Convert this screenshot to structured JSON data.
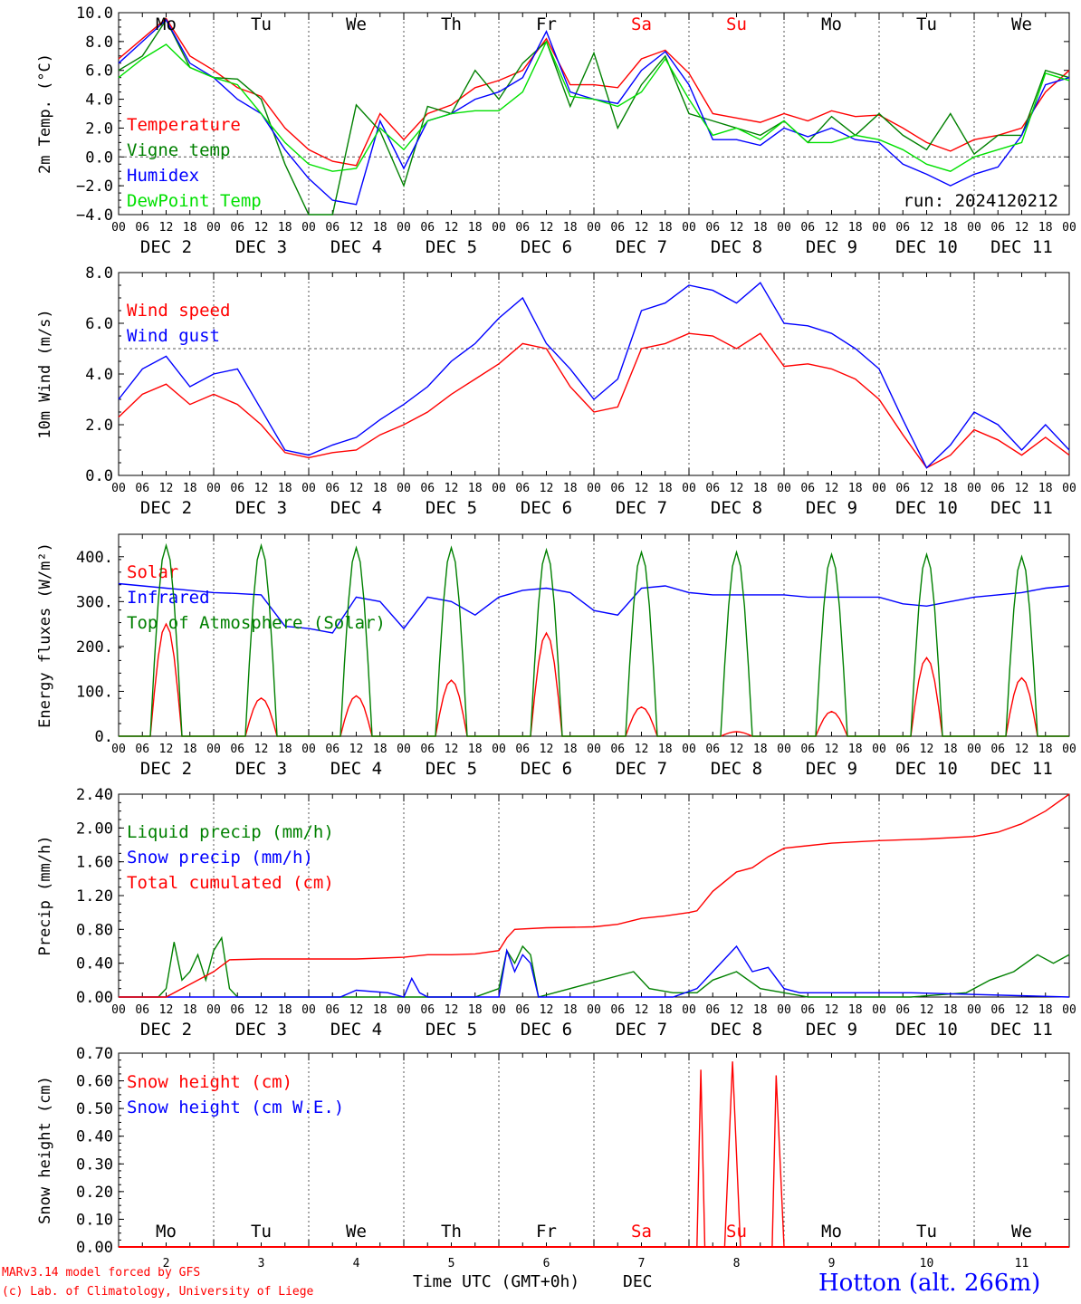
{
  "footer": {
    "model_credit": "MARv3.14 model forced by GFS",
    "lab_credit": "(c) Lab. of Climatology, University of Liege",
    "time_label": "Time UTC (GMT+0h)",
    "month_label": "DEC",
    "station": "Hotton (alt. 266m)"
  },
  "run_label": "run: 2024120212",
  "weekdays": [
    "Mo",
    "Tu",
    "We",
    "Th",
    "Fr",
    "Sa",
    "Su",
    "Mo",
    "Tu",
    "We"
  ],
  "weekday_colors": [
    "#000000",
    "#000000",
    "#000000",
    "#000000",
    "#000000",
    "#ff0000",
    "#ff0000",
    "#000000",
    "#000000",
    "#000000"
  ],
  "hour_ticks": [
    "00",
    "06",
    "12",
    "18"
  ],
  "date_labels": [
    "DEC  2",
    "DEC  3",
    "DEC  4",
    "DEC  5",
    "DEC  6",
    "DEC  7",
    "DEC  8",
    "DEC  9",
    "DEC 10",
    "DEC 11"
  ],
  "bottom_day_numbers": [
    "2",
    "3",
    "4",
    "5",
    "6",
    "7",
    "8",
    "9",
    "10",
    "11"
  ],
  "colors": {
    "red": "#ff0000",
    "green": "#008000",
    "blue": "#0000ff",
    "lightgreen": "#00e000",
    "axis": "#000000"
  },
  "chart_data": [
    {
      "type": "line",
      "ylabel": "2m Temp. (°C)",
      "ylim": [
        -4,
        10
      ],
      "yticks": [
        "10.0",
        "8.0",
        "6.0",
        "4.0",
        "2.0",
        "0.0",
        "−2.0",
        "−4.0"
      ],
      "ytick_values": [
        10,
        8,
        6,
        4,
        2,
        0,
        -2,
        -4
      ],
      "reference_line": 0,
      "x_unit": "hours since 2024-12-02 00 UTC",
      "series": [
        {
          "name": "Temperature",
          "color": "#ff0000",
          "x": [
            0,
            6,
            12,
            18,
            24,
            30,
            36,
            42,
            48,
            54,
            60,
            66,
            72,
            78,
            84,
            90,
            96,
            102,
            108,
            114,
            120,
            126,
            132,
            138,
            144,
            150,
            156,
            162,
            168,
            174,
            180,
            186,
            192,
            198,
            204,
            210,
            216,
            222,
            228,
            234,
            240
          ],
          "y": [
            6.8,
            8.2,
            9.6,
            7.0,
            6.0,
            4.8,
            4.2,
            2.0,
            0.5,
            -0.3,
            -0.6,
            3.0,
            1.2,
            3.0,
            3.6,
            4.8,
            5.3,
            6.0,
            8.2,
            5.0,
            5.0,
            4.8,
            6.8,
            7.4,
            5.8,
            3.0,
            2.7,
            2.4,
            3.0,
            2.5,
            3.2,
            2.8,
            2.9,
            2.0,
            1.0,
            0.4,
            1.2,
            1.5,
            2.0,
            4.5,
            6.0
          ]
        },
        {
          "name": "Vigne temp",
          "color": "#008000",
          "x": [
            0,
            6,
            12,
            18,
            24,
            30,
            36,
            42,
            48,
            54,
            60,
            66,
            72,
            78,
            84,
            90,
            96,
            102,
            108,
            114,
            120,
            126,
            132,
            138,
            144,
            150,
            156,
            162,
            168,
            174,
            180,
            186,
            192,
            198,
            204,
            210,
            216,
            222,
            228,
            234,
            240
          ],
          "y": [
            6.0,
            7.0,
            9.5,
            6.2,
            5.5,
            5.4,
            4.0,
            -0.5,
            -4.0,
            -4.0,
            3.6,
            1.8,
            -2.0,
            3.5,
            3.0,
            6.0,
            4.0,
            6.5,
            8.0,
            3.5,
            7.2,
            2.0,
            5.0,
            7.0,
            3.0,
            2.5,
            2.0,
            1.5,
            2.5,
            1.0,
            2.8,
            1.5,
            3.0,
            1.5,
            0.5,
            3.0,
            0.2,
            1.5,
            1.5,
            6.0,
            5.5
          ]
        },
        {
          "name": "Humidex",
          "color": "#0000ff",
          "x": [
            0,
            6,
            12,
            18,
            24,
            30,
            36,
            42,
            48,
            54,
            60,
            66,
            72,
            78,
            84,
            90,
            96,
            102,
            108,
            114,
            120,
            126,
            132,
            138,
            144,
            150,
            156,
            162,
            168,
            174,
            180,
            186,
            192,
            198,
            204,
            210,
            216,
            222,
            228,
            234,
            240
          ],
          "y": [
            6.5,
            8.0,
            9.5,
            6.5,
            5.5,
            4.0,
            3.0,
            0.5,
            -1.5,
            -3.0,
            -3.3,
            2.5,
            -0.8,
            2.5,
            3.0,
            4.0,
            4.5,
            5.5,
            8.7,
            4.5,
            4.0,
            3.7,
            6.0,
            7.3,
            5.0,
            1.2,
            1.2,
            0.8,
            2.0,
            1.4,
            2.0,
            1.2,
            1.0,
            -0.5,
            -1.2,
            -2.0,
            -1.2,
            -0.7,
            1.5,
            5.0,
            5.5
          ]
        },
        {
          "name": "DewPoint Temp",
          "color": "#00e000",
          "x": [
            0,
            6,
            12,
            18,
            24,
            30,
            36,
            42,
            48,
            54,
            60,
            66,
            72,
            78,
            84,
            90,
            96,
            102,
            108,
            114,
            120,
            126,
            132,
            138,
            144,
            150,
            156,
            162,
            168,
            174,
            180,
            186,
            192,
            198,
            204,
            210,
            216,
            222,
            228,
            234,
            240
          ],
          "y": [
            5.5,
            6.8,
            7.8,
            6.2,
            5.5,
            5.0,
            3.0,
            1.0,
            -0.5,
            -1.0,
            -0.8,
            2.0,
            0.5,
            2.5,
            3.0,
            3.2,
            3.2,
            4.5,
            8.0,
            4.2,
            4.0,
            3.5,
            4.5,
            6.8,
            4.0,
            1.5,
            2.0,
            1.2,
            2.5,
            1.0,
            1.0,
            1.5,
            1.2,
            0.5,
            -0.5,
            -1.0,
            0.0,
            0.5,
            1.0,
            5.8,
            5.3
          ]
        }
      ]
    },
    {
      "type": "line",
      "ylabel": "10m Wind (m/s)",
      "ylim": [
        0,
        8
      ],
      "yticks": [
        "8.0",
        "6.0",
        "4.0",
        "2.0",
        "0.0"
      ],
      "ytick_values": [
        8,
        6,
        4,
        2,
        0
      ],
      "reference_line": 5,
      "x_unit": "hours since 2024-12-02 00 UTC",
      "series": [
        {
          "name": "Wind speed",
          "color": "#ff0000",
          "x": [
            0,
            6,
            12,
            18,
            24,
            30,
            36,
            42,
            48,
            54,
            60,
            66,
            72,
            78,
            84,
            90,
            96,
            102,
            108,
            114,
            120,
            126,
            132,
            138,
            144,
            150,
            156,
            162,
            168,
            174,
            180,
            186,
            192,
            198,
            204,
            210,
            216,
            222,
            228,
            234,
            240
          ],
          "y": [
            2.3,
            3.2,
            3.6,
            2.8,
            3.2,
            2.8,
            2.0,
            0.9,
            0.7,
            0.9,
            1.0,
            1.6,
            2.0,
            2.5,
            3.2,
            3.8,
            4.4,
            5.2,
            5.0,
            3.5,
            2.5,
            2.7,
            5.0,
            5.2,
            5.6,
            5.5,
            5.0,
            5.6,
            4.3,
            4.4,
            4.2,
            3.8,
            3.0,
            1.6,
            0.3,
            0.8,
            1.8,
            1.4,
            0.8,
            1.5,
            0.8
          ]
        },
        {
          "name": "Wind gust",
          "color": "#0000ff",
          "x": [
            0,
            6,
            12,
            18,
            24,
            30,
            36,
            42,
            48,
            54,
            60,
            66,
            72,
            78,
            84,
            90,
            96,
            102,
            108,
            114,
            120,
            126,
            132,
            138,
            144,
            150,
            156,
            162,
            168,
            174,
            180,
            186,
            192,
            198,
            204,
            210,
            216,
            222,
            228,
            234,
            240
          ],
          "y": [
            3.0,
            4.2,
            4.7,
            3.5,
            4.0,
            4.2,
            2.6,
            1.0,
            0.8,
            1.2,
            1.5,
            2.2,
            2.8,
            3.5,
            4.5,
            5.2,
            6.2,
            7.0,
            5.2,
            4.2,
            3.0,
            3.8,
            6.5,
            6.8,
            7.5,
            7.3,
            6.8,
            7.6,
            6.0,
            5.9,
            5.6,
            5.0,
            4.2,
            2.2,
            0.3,
            1.2,
            2.5,
            2.0,
            1.0,
            2.0,
            1.0
          ]
        }
      ]
    },
    {
      "type": "line",
      "ylabel": "Energy fluxes (W/m²)",
      "ylim": [
        0,
        450
      ],
      "yticks": [
        "400.",
        "300.",
        "200.",
        "100.",
        "0."
      ],
      "ytick_values": [
        400,
        300,
        200,
        100,
        0
      ],
      "x_unit": "hours since 2024-12-02 00 UTC",
      "series": [
        {
          "name": "Solar",
          "color": "#ff0000",
          "daily_peaks": [
            250,
            85,
            90,
            125,
            230,
            65,
            10,
            55,
            175,
            130
          ]
        },
        {
          "name": "Infrared",
          "color": "#0000ff",
          "x": [
            0,
            6,
            12,
            18,
            24,
            30,
            36,
            42,
            48,
            54,
            60,
            66,
            72,
            78,
            84,
            90,
            96,
            102,
            108,
            114,
            120,
            126,
            132,
            138,
            144,
            150,
            156,
            162,
            168,
            174,
            180,
            186,
            192,
            198,
            204,
            210,
            216,
            222,
            228,
            234,
            240
          ],
          "y": [
            340,
            335,
            330,
            325,
            320,
            318,
            315,
            245,
            240,
            230,
            310,
            300,
            240,
            310,
            300,
            270,
            310,
            325,
            330,
            320,
            280,
            270,
            330,
            335,
            320,
            315,
            315,
            315,
            315,
            310,
            310,
            310,
            310,
            295,
            290,
            300,
            310,
            315,
            320,
            330,
            335
          ]
        },
        {
          "name": "Top of Atmosphere (Solar)",
          "color": "#008000",
          "daily_peaks": [
            425,
            425,
            420,
            420,
            415,
            410,
            410,
            405,
            405,
            400
          ]
        }
      ]
    },
    {
      "type": "line",
      "ylabel": "Precip (mm/h)",
      "ylim": [
        0,
        2.4
      ],
      "yticks": [
        "2.40",
        "2.00",
        "1.60",
        "1.20",
        "0.80",
        "0.40",
        "0.00"
      ],
      "ytick_values": [
        2.4,
        2.0,
        1.6,
        1.2,
        0.8,
        0.4,
        0.0
      ],
      "x_unit": "hours since 2024-12-02 00 UTC",
      "series": [
        {
          "name": "Liquid precip (mm/h)",
          "color": "#008000",
          "x": [
            0,
            10,
            12,
            14,
            16,
            18,
            20,
            22,
            24,
            26,
            28,
            30,
            40,
            48,
            56,
            72,
            90,
            96,
            98,
            100,
            102,
            104,
            106,
            130,
            134,
            140,
            146,
            150,
            156,
            162,
            168,
            174,
            200,
            214,
            220,
            226,
            232,
            236,
            240
          ],
          "y": [
            0,
            0,
            0.1,
            0.65,
            0.2,
            0.3,
            0.5,
            0.2,
            0.55,
            0.7,
            0.1,
            0,
            0,
            0,
            0,
            0,
            0,
            0.1,
            0.55,
            0.4,
            0.6,
            0.5,
            0,
            0.3,
            0.1,
            0.05,
            0.05,
            0.2,
            0.3,
            0.1,
            0.05,
            0,
            0,
            0.05,
            0.2,
            0.3,
            0.5,
            0.4,
            0.5
          ]
        },
        {
          "name": "Snow precip (mm/h)",
          "color": "#0000ff",
          "x": [
            0,
            56,
            60,
            68,
            72,
            74,
            76,
            78,
            96,
            98,
            100,
            102,
            104,
            106,
            140,
            146,
            150,
            156,
            160,
            164,
            168,
            172,
            180,
            200,
            240
          ],
          "y": [
            0,
            0,
            0.08,
            0.05,
            0,
            0.22,
            0.05,
            0,
            0,
            0.55,
            0.3,
            0.5,
            0.4,
            0,
            0,
            0.1,
            0.3,
            0.6,
            0.3,
            0.35,
            0.1,
            0.05,
            0.05,
            0.05,
            0
          ]
        },
        {
          "name": "Total cumulated (cm)",
          "color": "#ff0000",
          "x": [
            0,
            12,
            18,
            24,
            28,
            36,
            48,
            60,
            72,
            78,
            84,
            90,
            96,
            98,
            100,
            108,
            120,
            126,
            132,
            138,
            144,
            146,
            150,
            156,
            160,
            164,
            168,
            180,
            192,
            204,
            216,
            222,
            228,
            234,
            240
          ],
          "y": [
            0,
            0,
            0.15,
            0.3,
            0.44,
            0.45,
            0.45,
            0.45,
            0.47,
            0.5,
            0.5,
            0.51,
            0.55,
            0.7,
            0.8,
            0.82,
            0.83,
            0.86,
            0.93,
            0.96,
            1.0,
            1.02,
            1.25,
            1.48,
            1.53,
            1.66,
            1.76,
            1.82,
            1.85,
            1.87,
            1.9,
            1.95,
            2.05,
            2.2,
            2.42
          ]
        }
      ]
    },
    {
      "type": "line",
      "ylabel": "Snow height (cm)",
      "ylim": [
        0,
        0.7
      ],
      "yticks": [
        "0.70",
        "0.60",
        "0.50",
        "0.40",
        "0.30",
        "0.20",
        "0.10",
        "0.00"
      ],
      "ytick_values": [
        0.7,
        0.6,
        0.5,
        0.4,
        0.3,
        0.2,
        0.1,
        0.0
      ],
      "x_unit": "hours since 2024-12-02 00 UTC",
      "series": [
        {
          "name": "Snow height (cm)",
          "color": "#ff0000",
          "x": [
            0,
            146,
            147,
            148,
            152,
            153,
            155,
            157,
            158,
            160,
            165,
            166,
            168,
            240
          ],
          "y": [
            0,
            0,
            0.64,
            0,
            0,
            0,
            0.67,
            0,
            0,
            0,
            0,
            0.62,
            0,
            0
          ]
        },
        {
          "name": "Snow height (cm W.E.)",
          "color": "#0000ff",
          "x": [
            0,
            240
          ],
          "y": [
            0,
            0
          ]
        }
      ]
    }
  ]
}
